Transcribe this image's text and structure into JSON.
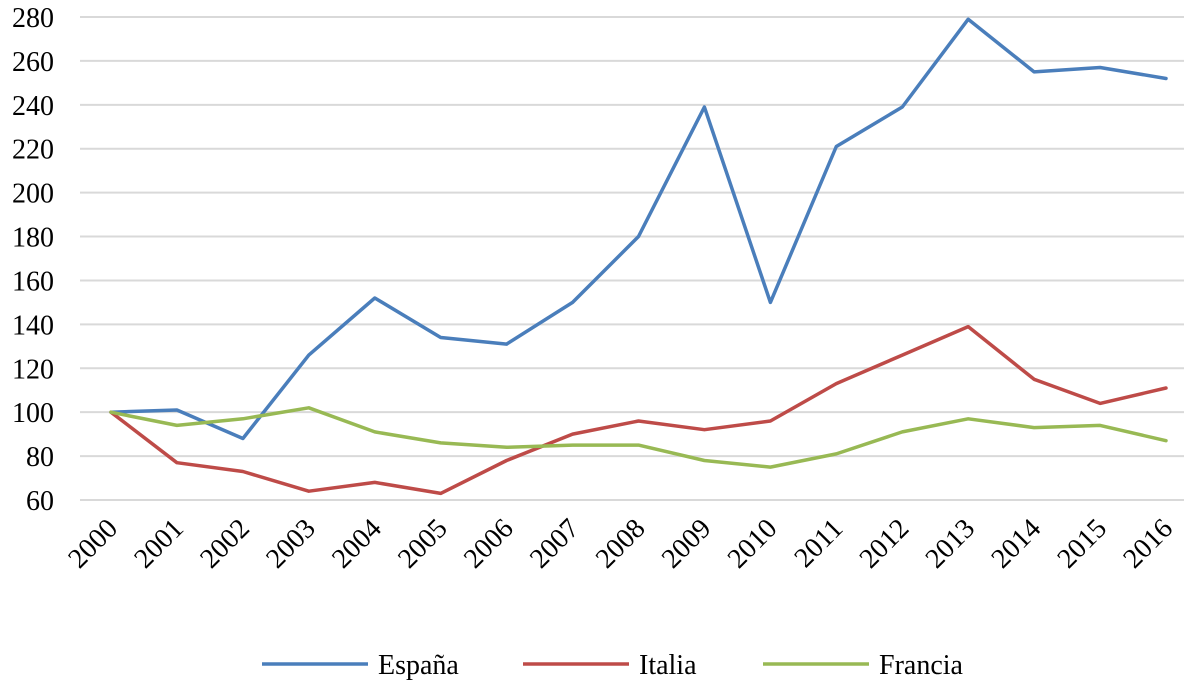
{
  "chart_data": {
    "type": "line",
    "title": "",
    "xlabel": "",
    "ylabel": "",
    "ylim": [
      60,
      280
    ],
    "y_ticks": [
      60,
      80,
      100,
      120,
      140,
      160,
      180,
      200,
      220,
      240,
      260,
      280
    ],
    "grid": true,
    "legend_position": "bottom",
    "categories": [
      "2000",
      "2001",
      "2002",
      "2003",
      "2004",
      "2005",
      "2006",
      "2007",
      "2008",
      "2009",
      "2010",
      "2011",
      "2012",
      "2013",
      "2014",
      "2015",
      "2016"
    ],
    "series": [
      {
        "name": "España",
        "color": "#4a7ebb",
        "values": [
          100,
          101,
          88,
          126,
          152,
          134,
          131,
          150,
          180,
          239,
          150,
          221,
          239,
          279,
          255,
          257,
          252
        ]
      },
      {
        "name": "Italia",
        "color": "#be4b48",
        "values": [
          100,
          77,
          73,
          64,
          68,
          63,
          78,
          90,
          96,
          92,
          96,
          113,
          126,
          139,
          115,
          104,
          111
        ]
      },
      {
        "name": "Francia",
        "color": "#98b954",
        "values": [
          100,
          94,
          97,
          102,
          91,
          86,
          84,
          85,
          85,
          78,
          75,
          81,
          91,
          97,
          93,
          94,
          87
        ]
      }
    ]
  }
}
